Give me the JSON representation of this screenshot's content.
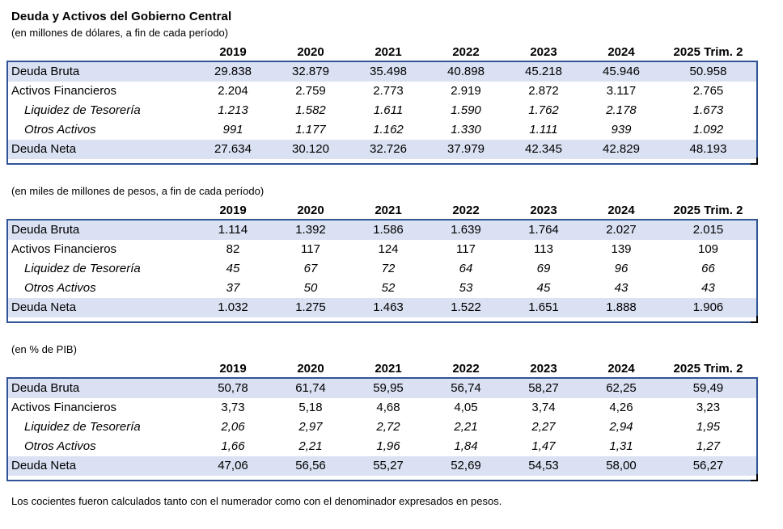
{
  "page": {
    "title": "Deuda y Activos del Gobierno Central",
    "footnote": "Los cocientes fueron calculados tanto con el numerador como con el denominador expresados en pesos."
  },
  "colors": {
    "row_highlight": "#D9E1F2",
    "table_border": "#305496",
    "text": "#000000"
  },
  "columns": [
    "2019",
    "2020",
    "2021",
    "2022",
    "2023",
    "2024",
    "2025 Trim. 2"
  ],
  "sections": [
    {
      "subtitle": "(en millones de dólares, a fin de cada período)",
      "rows": [
        {
          "label": "Deuda Bruta",
          "style": "highlight",
          "values": [
            "29.838",
            "32.879",
            "35.498",
            "40.898",
            "45.218",
            "45.946",
            "50.958"
          ]
        },
        {
          "label": "Activos Financieros",
          "style": "normal",
          "values": [
            "2.204",
            "2.759",
            "2.773",
            "2.919",
            "2.872",
            "3.117",
            "2.765"
          ]
        },
        {
          "label": "Liquidez de Tesorería",
          "style": "sub",
          "values": [
            "1.213",
            "1.582",
            "1.611",
            "1.590",
            "1.762",
            "2.178",
            "1.673"
          ]
        },
        {
          "label": "Otros Activos",
          "style": "sub",
          "values": [
            "991",
            "1.177",
            "1.162",
            "1.330",
            "1.111",
            "939",
            "1.092"
          ]
        },
        {
          "label": "Deuda Neta",
          "style": "highlight",
          "values": [
            "27.634",
            "30.120",
            "32.726",
            "37.979",
            "42.345",
            "42.829",
            "48.193"
          ]
        }
      ]
    },
    {
      "subtitle": "(en miles de millones de pesos, a fin de cada período)",
      "rows": [
        {
          "label": "Deuda Bruta",
          "style": "highlight",
          "values": [
            "1.114",
            "1.392",
            "1.586",
            "1.639",
            "1.764",
            "2.027",
            "2.015"
          ]
        },
        {
          "label": "Activos Financieros",
          "style": "normal",
          "values": [
            "82",
            "117",
            "124",
            "117",
            "113",
            "139",
            "109"
          ]
        },
        {
          "label": "Liquidez de Tesorería",
          "style": "sub",
          "values": [
            "45",
            "67",
            "72",
            "64",
            "69",
            "96",
            "66"
          ]
        },
        {
          "label": "Otros Activos",
          "style": "sub",
          "values": [
            "37",
            "50",
            "52",
            "53",
            "45",
            "43",
            "43"
          ]
        },
        {
          "label": "Deuda Neta",
          "style": "highlight",
          "values": [
            "1.032",
            "1.275",
            "1.463",
            "1.522",
            "1.651",
            "1.888",
            "1.906"
          ]
        }
      ]
    },
    {
      "subtitle": "(en % de PIB)",
      "rows": [
        {
          "label": "Deuda Bruta",
          "style": "highlight",
          "values": [
            "50,78",
            "61,74",
            "59,95",
            "56,74",
            "58,27",
            "62,25",
            "59,49"
          ]
        },
        {
          "label": "Activos Financieros",
          "style": "normal",
          "values": [
            "3,73",
            "5,18",
            "4,68",
            "4,05",
            "3,74",
            "4,26",
            "3,23"
          ]
        },
        {
          "label": "Liquidez de Tesorería",
          "style": "sub",
          "values": [
            "2,06",
            "2,97",
            "2,72",
            "2,21",
            "2,27",
            "2,94",
            "1,95"
          ]
        },
        {
          "label": "Otros Activos",
          "style": "sub",
          "values": [
            "1,66",
            "2,21",
            "1,96",
            "1,84",
            "1,47",
            "1,31",
            "1,27"
          ]
        },
        {
          "label": "Deuda Neta",
          "style": "highlight",
          "values": [
            "47,06",
            "56,56",
            "55,27",
            "52,69",
            "54,53",
            "58,00",
            "56,27"
          ]
        }
      ]
    }
  ]
}
